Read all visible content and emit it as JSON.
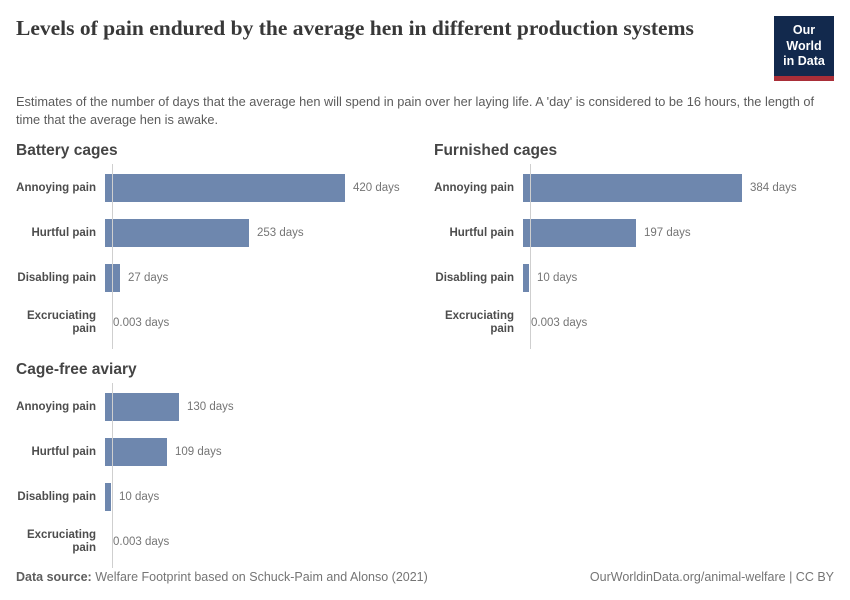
{
  "header": {
    "title": "Levels of pain endured by the average hen in different production systems",
    "subtitle": "Estimates of the number of days that the average hen will spend in pain over her laying life. A 'day' is considered to be 16 hours, the length of time that the average hen is awake.",
    "logo": {
      "line1": "Our World",
      "line2": "in Data"
    }
  },
  "colors": {
    "bar": "#6e87ae",
    "logo_bg": "#12294d",
    "logo_stripe": "#a92e38",
    "axis_line": "#cfcfcf"
  },
  "chart_data": [
    {
      "type": "bar",
      "orientation": "horizontal",
      "title": "Battery cages",
      "categories": [
        "Annoying pain",
        "Hurtful pain",
        "Disabling pain",
        "Excruciating pain"
      ],
      "values": [
        420,
        253,
        27,
        0.003
      ],
      "value_labels": [
        "420 days",
        "253 days",
        "27 days",
        "0.003 days"
      ],
      "unit": "days",
      "xlim": [
        0,
        450
      ],
      "grid": false,
      "legend": "none"
    },
    {
      "type": "bar",
      "orientation": "horizontal",
      "title": "Furnished cages",
      "categories": [
        "Annoying pain",
        "Hurtful pain",
        "Disabling pain",
        "Excruciating pain"
      ],
      "values": [
        384,
        197,
        10,
        0.003
      ],
      "value_labels": [
        "384 days",
        "197 days",
        "10 days",
        "0.003 days"
      ],
      "unit": "days",
      "xlim": [
        0,
        450
      ],
      "grid": false,
      "legend": "none"
    },
    {
      "type": "bar",
      "orientation": "horizontal",
      "title": "Cage-free aviary",
      "categories": [
        "Annoying pain",
        "Hurtful pain",
        "Disabling pain",
        "Excruciating pain"
      ],
      "values": [
        130,
        109,
        10,
        0.003
      ],
      "value_labels": [
        "130 days",
        "109 days",
        "10 days",
        "0.003 days"
      ],
      "unit": "days",
      "xlim": [
        0,
        450
      ],
      "grid": false,
      "legend": "none"
    }
  ],
  "footer": {
    "source_label": "Data source:",
    "source_text": " Welfare Footprint based on Schuck-Paim and Alonso (2021)",
    "attribution": "OurWorldinData.org/animal-welfare | CC BY"
  }
}
